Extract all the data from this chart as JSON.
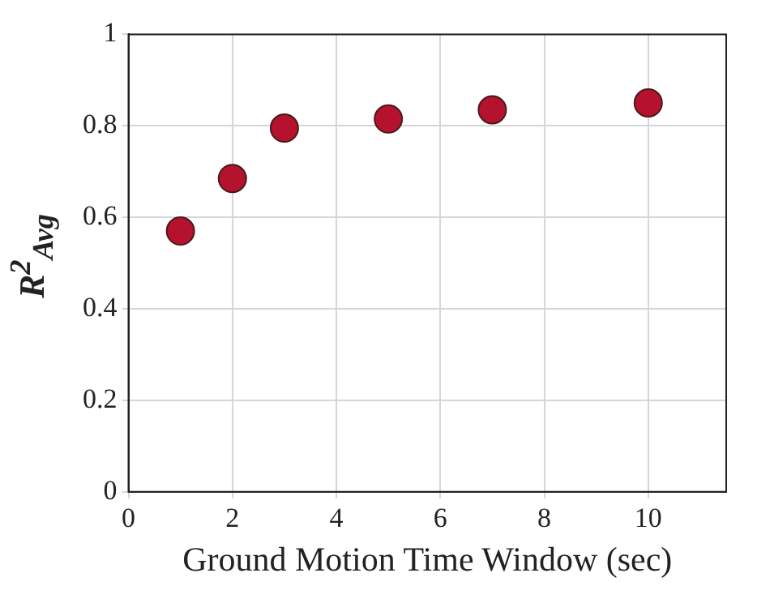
{
  "chart_data": {
    "type": "scatter",
    "xlabel": "Ground Motion Time Window (sec)",
    "ylabel": "R$^{2}$$_{Avg}$",
    "x": [
      1,
      2,
      3,
      5,
      7,
      10
    ],
    "series": [
      {
        "color": "#b5122e",
        "values": [
          0.57,
          0.685,
          0.795,
          0.815,
          0.835,
          0.85
        ]
      }
    ],
    "xlim": [
      0,
      11.5
    ],
    "xticks": [
      0,
      2,
      4,
      6,
      8,
      10
    ],
    "ylim": [
      0,
      1
    ],
    "yticks": [
      0,
      0.2,
      0.4,
      0.6,
      0.8,
      1
    ],
    "grid": true,
    "marker": "circle"
  }
}
